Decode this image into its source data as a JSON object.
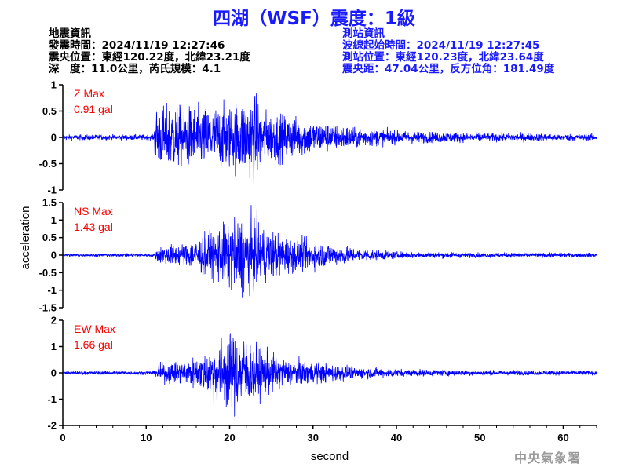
{
  "title": "四湖（WSF）震度：1級",
  "quake_info": {
    "heading": "地震資訊",
    "origin_time": "發震時間：2024/11/19 12:27:46",
    "epicenter": "震央位置：東經120.22度，北緯23.21度",
    "depth_magnitude": "深　度：11.0公里，芮氏規模：4.1"
  },
  "station_info": {
    "heading": "測站資訊",
    "wave_start": "波線起始時間：2024/11/19 12:27:45",
    "location": "測站位置：東經120.23度，北緯23.64度",
    "distance_azimuth": "震央距：47.04公里，反方位角：181.49度"
  },
  "credit": "中央氣象署",
  "colors": {
    "trace": "#0000ff",
    "label": "#ff0000",
    "title": "#1a1aff",
    "axis": "#000000"
  },
  "chart_data": {
    "type": "line",
    "xlabel": "second",
    "ylabel": "acceleration",
    "xlim": [
      0,
      64
    ],
    "xticks": [
      0,
      10,
      20,
      30,
      40,
      50,
      60
    ],
    "series": [
      {
        "name": "Z",
        "label": "Z Max",
        "max_label": "0.91 gal",
        "peak": 0.91,
        "ylim": [
          -1,
          1
        ],
        "yticks": [
          -1,
          -0.5,
          0,
          0.5,
          1
        ],
        "ytick_labels": [
          "-1",
          "-0.5",
          "0",
          "0.5",
          "1"
        ],
        "onset": 11.0,
        "envelope": [
          [
            0,
            0.05
          ],
          [
            10.9,
            0.05
          ],
          [
            11.1,
            0.55
          ],
          [
            13,
            0.6
          ],
          [
            17,
            0.55
          ],
          [
            20,
            0.6
          ],
          [
            23,
            0.8
          ],
          [
            24,
            0.5
          ],
          [
            27,
            0.4
          ],
          [
            30,
            0.3
          ],
          [
            35,
            0.2
          ],
          [
            40,
            0.12
          ],
          [
            50,
            0.08
          ],
          [
            64,
            0.06
          ]
        ]
      },
      {
        "name": "NS",
        "label": "NS Max",
        "max_label": "1.43 gal",
        "peak": 1.43,
        "ylim": [
          -1.5,
          1.5
        ],
        "yticks": [
          -1.5,
          -1,
          -0.5,
          0,
          0.5,
          1,
          1.5
        ],
        "ytick_labels": [
          "-1.5",
          "-1",
          "-0.5",
          "0",
          "0.5",
          "1",
          "1.5"
        ],
        "onset": 11.0,
        "envelope": [
          [
            0,
            0.04
          ],
          [
            11,
            0.05
          ],
          [
            11.5,
            0.25
          ],
          [
            15,
            0.35
          ],
          [
            18,
            0.7
          ],
          [
            20,
            1.0
          ],
          [
            22,
            1.15
          ],
          [
            24,
            0.8
          ],
          [
            27,
            0.5
          ],
          [
            30,
            0.4
          ],
          [
            35,
            0.2
          ],
          [
            40,
            0.1
          ],
          [
            50,
            0.07
          ],
          [
            64,
            0.06
          ]
        ]
      },
      {
        "name": "EW",
        "label": "EW Max",
        "max_label": "1.66 gal",
        "peak": 1.66,
        "ylim": [
          -2,
          2
        ],
        "yticks": [
          -2,
          -1,
          0,
          1,
          2
        ],
        "ytick_labels": [
          "-2",
          "-1",
          "0",
          "1",
          "2"
        ],
        "onset": 11.0,
        "envelope": [
          [
            0,
            0.05
          ],
          [
            11,
            0.06
          ],
          [
            11.5,
            0.3
          ],
          [
            14,
            0.35
          ],
          [
            17,
            0.6
          ],
          [
            19,
            1.1
          ],
          [
            21,
            1.3
          ],
          [
            23,
            0.9
          ],
          [
            26,
            0.5
          ],
          [
            30,
            0.35
          ],
          [
            35,
            0.2
          ],
          [
            40,
            0.12
          ],
          [
            50,
            0.08
          ],
          [
            64,
            0.07
          ]
        ]
      }
    ]
  }
}
